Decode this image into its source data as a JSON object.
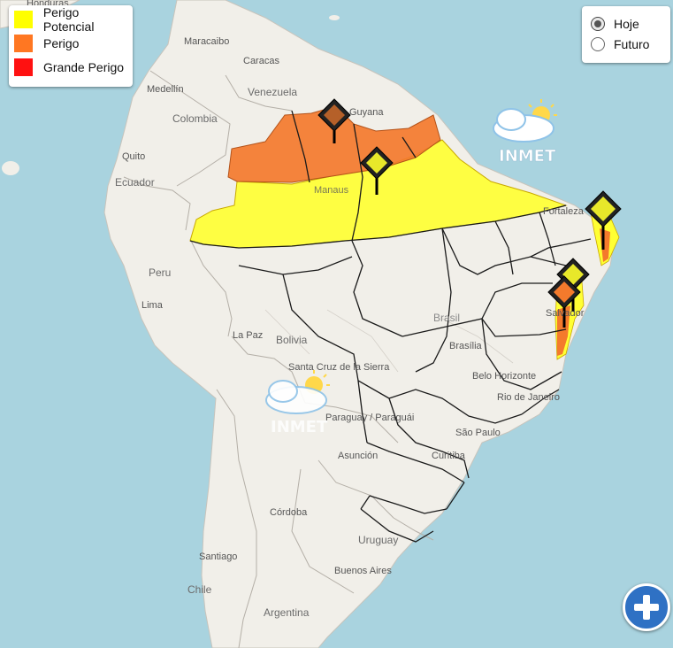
{
  "legend": {
    "items": [
      {
        "label": "Perigo Potencial",
        "color": "#ffff00"
      },
      {
        "label": "Perigo",
        "color": "#ff7722"
      },
      {
        "label": "Grande Perigo",
        "color": "#ff1111"
      }
    ]
  },
  "period_selector": {
    "options": [
      {
        "label": "Hoje",
        "selected": true
      },
      {
        "label": "Futuro",
        "selected": false
      }
    ]
  },
  "zoom_button": {
    "icon": "plus-icon"
  },
  "watermark": {
    "text": "INMET",
    "icon": "sun-cloud-icon"
  },
  "warning_marker_icon": "warning-diamond-icon",
  "place_labels": [
    {
      "name": "Honduras"
    },
    {
      "name": "Maracaibo"
    },
    {
      "name": "Caracas"
    },
    {
      "name": "Medellín"
    },
    {
      "name": "Venezuela"
    },
    {
      "name": "Colombia"
    },
    {
      "name": "Quito"
    },
    {
      "name": "Ecuador"
    },
    {
      "name": "Manaus"
    },
    {
      "name": "Peru"
    },
    {
      "name": "Lima"
    },
    {
      "name": "La Paz"
    },
    {
      "name": "Bolivia"
    },
    {
      "name": "Santa Cruz de la Sierra"
    },
    {
      "name": "Brasil"
    },
    {
      "name": "Brasília"
    },
    {
      "name": "Fortaleza"
    },
    {
      "name": "Salvador"
    },
    {
      "name": "Belo Horizonte"
    },
    {
      "name": "Rio de Janeiro"
    },
    {
      "name": "São Paulo"
    },
    {
      "name": "Curitiba"
    },
    {
      "name": "Paraguay / Paraguái"
    },
    {
      "name": "Asunción"
    },
    {
      "name": "Córdoba"
    },
    {
      "name": "Uruguay"
    },
    {
      "name": "Santiago"
    },
    {
      "name": "Buenos Aires"
    },
    {
      "name": "Chile"
    },
    {
      "name": "Argentina"
    },
    {
      "name": "Guyana"
    }
  ]
}
